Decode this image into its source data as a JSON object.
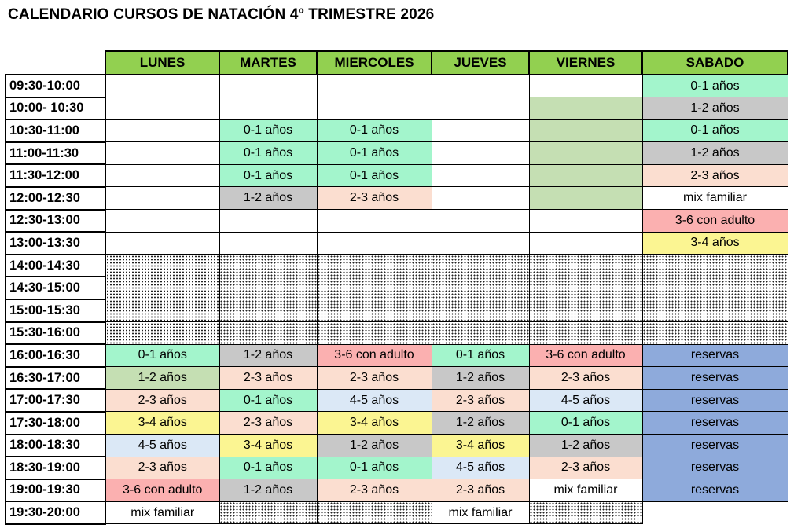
{
  "title": "CALENDARIO CURSOS DE NATACIÓN 4º TRIMESTRE 2026",
  "days": [
    "LUNES",
    "MARTES",
    "MIERCOLES",
    "JUEVES",
    "VIERNES",
    "SABADO"
  ],
  "colors": {
    "header_green": "#92d050",
    "mint": "#a3f5cc",
    "gray": "#c8c8c8",
    "peach": "#fbded0",
    "pink": "#fbb0b0",
    "yellow": "#fbf592",
    "light_green": "#c5dfb3",
    "light_blue": "#dbe8f6",
    "blue": "#8eaadb"
  },
  "rows": [
    {
      "time": "09:30-10:00",
      "cells": [
        {
          "t": "",
          "c": "white"
        },
        {
          "t": "",
          "c": "white"
        },
        {
          "t": "",
          "c": "white"
        },
        {
          "t": "",
          "c": "white"
        },
        {
          "t": "",
          "c": "white"
        },
        {
          "t": "0-1 años",
          "c": "green"
        }
      ]
    },
    {
      "time": "10:00- 10:30",
      "cells": [
        {
          "t": "",
          "c": "white"
        },
        {
          "t": "",
          "c": "white"
        },
        {
          "t": "",
          "c": "white"
        },
        {
          "t": "",
          "c": "white"
        },
        {
          "t": "",
          "c": "lgreen"
        },
        {
          "t": "1-2 años",
          "c": "gray"
        }
      ]
    },
    {
      "time": "10:30-11:00",
      "cells": [
        {
          "t": "",
          "c": "white"
        },
        {
          "t": "0-1 años",
          "c": "green"
        },
        {
          "t": "0-1 años",
          "c": "green"
        },
        {
          "t": "",
          "c": "white"
        },
        {
          "t": "",
          "c": "lgreen"
        },
        {
          "t": "0-1 años",
          "c": "green"
        }
      ]
    },
    {
      "time": "11:00-11:30",
      "cells": [
        {
          "t": "",
          "c": "white"
        },
        {
          "t": "0-1 años",
          "c": "green"
        },
        {
          "t": "0-1 años",
          "c": "green"
        },
        {
          "t": "",
          "c": "white"
        },
        {
          "t": "",
          "c": "lgreen"
        },
        {
          "t": "1-2 años",
          "c": "gray"
        }
      ]
    },
    {
      "time": "11:30-12:00",
      "cells": [
        {
          "t": "",
          "c": "white"
        },
        {
          "t": "0-1 años",
          "c": "green"
        },
        {
          "t": "0-1 años",
          "c": "green"
        },
        {
          "t": "",
          "c": "white"
        },
        {
          "t": "",
          "c": "lgreen"
        },
        {
          "t": "2-3 años",
          "c": "peach"
        }
      ]
    },
    {
      "time": "12:00-12:30",
      "cells": [
        {
          "t": "",
          "c": "white"
        },
        {
          "t": "1-2 años",
          "c": "gray"
        },
        {
          "t": "2-3 años",
          "c": "peach"
        },
        {
          "t": "",
          "c": "white"
        },
        {
          "t": "",
          "c": "lgreen"
        },
        {
          "t": "mix familiar",
          "c": "white"
        }
      ]
    },
    {
      "time": "12:30-13:00",
      "cells": [
        {
          "t": "",
          "c": "white"
        },
        {
          "t": "",
          "c": "white"
        },
        {
          "t": "",
          "c": "white"
        },
        {
          "t": "",
          "c": "white"
        },
        {
          "t": "",
          "c": "white"
        },
        {
          "t": "3-6 con adulto",
          "c": "pink"
        }
      ]
    },
    {
      "time": "13:00-13:30",
      "cells": [
        {
          "t": "",
          "c": "white"
        },
        {
          "t": "",
          "c": "white"
        },
        {
          "t": "",
          "c": "white"
        },
        {
          "t": "",
          "c": "white"
        },
        {
          "t": "",
          "c": "white"
        },
        {
          "t": "3-4 años",
          "c": "yellow"
        }
      ]
    },
    {
      "time": "14:00-14:30",
      "cells": [
        {
          "t": "",
          "c": "dots"
        },
        {
          "t": "",
          "c": "dots"
        },
        {
          "t": "",
          "c": "dots"
        },
        {
          "t": "",
          "c": "dots"
        },
        {
          "t": "",
          "c": "dots"
        },
        {
          "t": "",
          "c": "dots"
        }
      ]
    },
    {
      "time": "14:30-15:00",
      "cells": [
        {
          "t": "",
          "c": "dots"
        },
        {
          "t": "",
          "c": "dots"
        },
        {
          "t": "",
          "c": "dots"
        },
        {
          "t": "",
          "c": "dots"
        },
        {
          "t": "",
          "c": "dots"
        },
        {
          "t": "",
          "c": "dots"
        }
      ]
    },
    {
      "time": "15:00-15:30",
      "cells": [
        {
          "t": "",
          "c": "dots"
        },
        {
          "t": "",
          "c": "dots"
        },
        {
          "t": "",
          "c": "dots"
        },
        {
          "t": "",
          "c": "dots"
        },
        {
          "t": "",
          "c": "dots"
        },
        {
          "t": "",
          "c": "dots"
        }
      ]
    },
    {
      "time": "15:30-16:00",
      "cells": [
        {
          "t": "",
          "c": "dots"
        },
        {
          "t": "",
          "c": "dots"
        },
        {
          "t": "",
          "c": "dots"
        },
        {
          "t": "",
          "c": "dots"
        },
        {
          "t": "",
          "c": "dots"
        },
        {
          "t": "",
          "c": "dots"
        }
      ]
    },
    {
      "time": "16:00-16:30",
      "cells": [
        {
          "t": "0-1 años",
          "c": "green"
        },
        {
          "t": "1-2 años",
          "c": "gray"
        },
        {
          "t": "3-6 con adulto",
          "c": "pink"
        },
        {
          "t": "0-1 años",
          "c": "green"
        },
        {
          "t": "3-6 con adulto",
          "c": "pink"
        },
        {
          "t": "reservas",
          "c": "blue"
        }
      ]
    },
    {
      "time": "16:30-17:00",
      "cells": [
        {
          "t": "1-2 años",
          "c": "lgreen"
        },
        {
          "t": "2-3 años",
          "c": "peach"
        },
        {
          "t": "2-3 años",
          "c": "peach"
        },
        {
          "t": "1-2 años",
          "c": "gray"
        },
        {
          "t": "2-3 años",
          "c": "peach"
        },
        {
          "t": "reservas",
          "c": "blue"
        }
      ]
    },
    {
      "time": "17:00-17:30",
      "cells": [
        {
          "t": "2-3 años",
          "c": "peach"
        },
        {
          "t": "0-1 años",
          "c": "green"
        },
        {
          "t": "4-5 años",
          "c": "lblue"
        },
        {
          "t": "2-3 años",
          "c": "peach"
        },
        {
          "t": "4-5 años",
          "c": "lblue"
        },
        {
          "t": "reservas",
          "c": "blue"
        }
      ]
    },
    {
      "time": "17:30-18:00",
      "cells": [
        {
          "t": "3-4 años",
          "c": "yellow"
        },
        {
          "t": "2-3 años",
          "c": "peach"
        },
        {
          "t": "3-4 años",
          "c": "yellow"
        },
        {
          "t": "1-2 años",
          "c": "gray"
        },
        {
          "t": "0-1 años",
          "c": "green"
        },
        {
          "t": "reservas",
          "c": "blue"
        }
      ]
    },
    {
      "time": "18:00-18:30",
      "cells": [
        {
          "t": "4-5 años",
          "c": "lblue"
        },
        {
          "t": "3-4 años",
          "c": "yellow"
        },
        {
          "t": "1-2 años",
          "c": "gray"
        },
        {
          "t": "3-4 años",
          "c": "yellow"
        },
        {
          "t": "1-2 años",
          "c": "gray"
        },
        {
          "t": "reservas",
          "c": "blue"
        }
      ]
    },
    {
      "time": "18:30-19:00",
      "cells": [
        {
          "t": "2-3 años",
          "c": "peach"
        },
        {
          "t": "0-1 años",
          "c": "green"
        },
        {
          "t": "0-1 años",
          "c": "green"
        },
        {
          "t": "4-5 años",
          "c": "lblue"
        },
        {
          "t": "2-3 años",
          "c": "peach"
        },
        {
          "t": "reservas",
          "c": "blue"
        }
      ]
    },
    {
      "time": "19:00-19:30",
      "cells": [
        {
          "t": "3-6 con adulto",
          "c": "pink"
        },
        {
          "t": "1-2 años",
          "c": "gray"
        },
        {
          "t": "2-3 años",
          "c": "peach"
        },
        {
          "t": "2-3 años",
          "c": "peach"
        },
        {
          "t": "mix familiar",
          "c": "white"
        },
        {
          "t": "reservas",
          "c": "blue"
        }
      ]
    },
    {
      "time": "19:30-20:00",
      "cells": [
        {
          "t": "mix familiar",
          "c": "white"
        },
        {
          "t": "",
          "c": "dots"
        },
        {
          "t": "",
          "c": "dots"
        },
        {
          "t": "mix familiar",
          "c": "white"
        },
        {
          "t": "",
          "c": "dots"
        },
        {
          "t": "",
          "c": "none"
        }
      ]
    }
  ]
}
